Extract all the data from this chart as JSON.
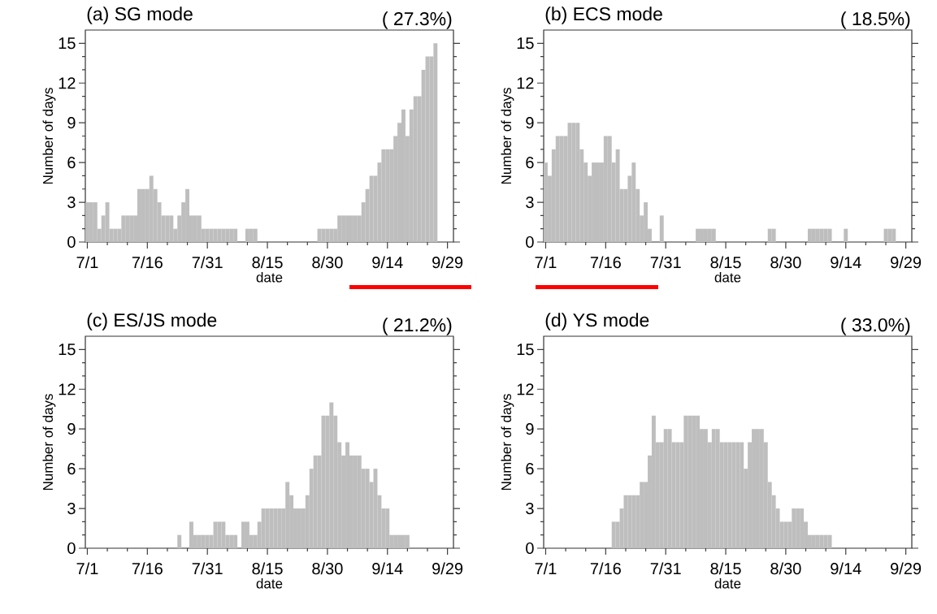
{
  "chart_data": [
    {
      "type": "bar",
      "title": "(a) SG mode",
      "subtitle": "( 27.3%)",
      "xlabel": "date",
      "ylabel": "Number of days",
      "color": "#bebebe",
      "ylim": [
        0,
        16
      ],
      "yticks": [
        0,
        3,
        6,
        9,
        12,
        15
      ],
      "categories": [
        "7/1",
        null,
        null,
        null,
        null,
        null,
        null,
        null,
        null,
        null,
        null,
        null,
        null,
        null,
        null,
        "7/16",
        null,
        null,
        null,
        null,
        null,
        null,
        null,
        null,
        null,
        null,
        null,
        null,
        null,
        null,
        "7/31",
        null,
        null,
        null,
        null,
        null,
        null,
        null,
        null,
        null,
        null,
        null,
        null,
        null,
        null,
        "8/15",
        null,
        null,
        null,
        null,
        null,
        null,
        null,
        null,
        null,
        null,
        null,
        null,
        null,
        null,
        "8/30",
        null,
        null,
        null,
        null,
        null,
        null,
        null,
        null,
        null,
        null,
        null,
        null,
        null,
        null,
        "9/14",
        null,
        null,
        null,
        null,
        null,
        null,
        null,
        null,
        null,
        null,
        null,
        null,
        null,
        null,
        "9/29",
        null
      ],
      "values": [
        3,
        3,
        3,
        1,
        2,
        3,
        1,
        1,
        1,
        2,
        2,
        2,
        2,
        4,
        4,
        4,
        5,
        4,
        3,
        2,
        2,
        2,
        1,
        2,
        3,
        4,
        2,
        2,
        2,
        1,
        1,
        1,
        1,
        1,
        1,
        1,
        1,
        1,
        0,
        0,
        1,
        1,
        1,
        0,
        0,
        0,
        0,
        0,
        0,
        0,
        0,
        0,
        0,
        0,
        0,
        0,
        0,
        0,
        1,
        1,
        1,
        1,
        1,
        2,
        2,
        2,
        2,
        2,
        2,
        3,
        4,
        5,
        5,
        6,
        7,
        7,
        7,
        8,
        9,
        10,
        8,
        10,
        11,
        11,
        13,
        14,
        14,
        15,
        0,
        0,
        0,
        0
      ]
    },
    {
      "type": "bar",
      "title": "(b) ECS mode",
      "subtitle": "( 18.5%)",
      "xlabel": "date",
      "ylabel": "Number of days",
      "color": "#bebebe",
      "ylim": [
        0,
        16
      ],
      "yticks": [
        0,
        3,
        6,
        9,
        12,
        15
      ],
      "categories": [
        "7/1",
        null,
        null,
        null,
        null,
        null,
        null,
        null,
        null,
        null,
        null,
        null,
        null,
        null,
        null,
        "7/16",
        null,
        null,
        null,
        null,
        null,
        null,
        null,
        null,
        null,
        null,
        null,
        null,
        null,
        null,
        "7/31",
        null,
        null,
        null,
        null,
        null,
        null,
        null,
        null,
        null,
        null,
        null,
        null,
        null,
        null,
        "8/15",
        null,
        null,
        null,
        null,
        null,
        null,
        null,
        null,
        null,
        null,
        null,
        null,
        null,
        null,
        "8/30",
        null,
        null,
        null,
        null,
        null,
        null,
        null,
        null,
        null,
        null,
        null,
        null,
        null,
        null,
        "9/14",
        null,
        null,
        null,
        null,
        null,
        null,
        null,
        null,
        null,
        null,
        null,
        null,
        null,
        null,
        "9/29",
        null
      ],
      "values": [
        6,
        5,
        7,
        8,
        8,
        8,
        9,
        9,
        9,
        7,
        6,
        5,
        6,
        6,
        6,
        8,
        8,
        6,
        7,
        4,
        4,
        5,
        6,
        4,
        2,
        3,
        1,
        0,
        0,
        2,
        0,
        0,
        0,
        0,
        0,
        0,
        0,
        0,
        1,
        1,
        1,
        1,
        1,
        0,
        0,
        0,
        0,
        0,
        0,
        0,
        0,
        0,
        0,
        0,
        0,
        0,
        1,
        1,
        0,
        0,
        0,
        0,
        0,
        0,
        0,
        0,
        1,
        1,
        1,
        1,
        1,
        1,
        0,
        0,
        0,
        1,
        0,
        0,
        0,
        0,
        0,
        0,
        0,
        0,
        0,
        1,
        1,
        1,
        0,
        0,
        0,
        0
      ]
    },
    {
      "type": "bar",
      "title": "(c) ES/JS mode",
      "subtitle": "( 21.2%)",
      "xlabel": "date",
      "ylabel": "Number of days",
      "color": "#bebebe",
      "ylim": [
        0,
        16
      ],
      "yticks": [
        0,
        3,
        6,
        9,
        12,
        15
      ],
      "categories": [
        "7/1",
        null,
        null,
        null,
        null,
        null,
        null,
        null,
        null,
        null,
        null,
        null,
        null,
        null,
        null,
        "7/16",
        null,
        null,
        null,
        null,
        null,
        null,
        null,
        null,
        null,
        null,
        null,
        null,
        null,
        null,
        "7/31",
        null,
        null,
        null,
        null,
        null,
        null,
        null,
        null,
        null,
        null,
        null,
        null,
        null,
        null,
        "8/15",
        null,
        null,
        null,
        null,
        null,
        null,
        null,
        null,
        null,
        null,
        null,
        null,
        null,
        null,
        "8/30",
        null,
        null,
        null,
        null,
        null,
        null,
        null,
        null,
        null,
        null,
        null,
        null,
        null,
        null,
        "9/14",
        null,
        null,
        null,
        null,
        null,
        null,
        null,
        null,
        null,
        null,
        null,
        null,
        null,
        null,
        "9/29",
        null
      ],
      "values": [
        0,
        0,
        0,
        0,
        0,
        0,
        0,
        0,
        0,
        0,
        0,
        0,
        0,
        0,
        0,
        0,
        0,
        0,
        0,
        0,
        0,
        0,
        0,
        1,
        0,
        0,
        2,
        1,
        1,
        1,
        1,
        1,
        2,
        2,
        2,
        1,
        1,
        1,
        0,
        2,
        2,
        1,
        1,
        2,
        3,
        3,
        3,
        3,
        3,
        3,
        5,
        4,
        3,
        3,
        3,
        4,
        6,
        7,
        7,
        10,
        10,
        11,
        10,
        8,
        7,
        8,
        7,
        7,
        7,
        6,
        6,
        5,
        6,
        4,
        3,
        3,
        1,
        1,
        1,
        1,
        1,
        0,
        0,
        0,
        0,
        0,
        0,
        0,
        0,
        0,
        0,
        0
      ]
    },
    {
      "type": "bar",
      "title": "(d) YS mode",
      "subtitle": "( 33.0%)",
      "xlabel": "date",
      "ylabel": "Number of days",
      "color": "#bebebe",
      "ylim": [
        0,
        16
      ],
      "yticks": [
        0,
        3,
        6,
        9,
        12,
        15
      ],
      "categories": [
        "7/1",
        null,
        null,
        null,
        null,
        null,
        null,
        null,
        null,
        null,
        null,
        null,
        null,
        null,
        null,
        "7/16",
        null,
        null,
        null,
        null,
        null,
        null,
        null,
        null,
        null,
        null,
        null,
        null,
        null,
        null,
        "7/31",
        null,
        null,
        null,
        null,
        null,
        null,
        null,
        null,
        null,
        null,
        null,
        null,
        null,
        null,
        "8/15",
        null,
        null,
        null,
        null,
        null,
        null,
        null,
        null,
        null,
        null,
        null,
        null,
        null,
        null,
        "8/30",
        null,
        null,
        null,
        null,
        null,
        null,
        null,
        null,
        null,
        null,
        null,
        null,
        null,
        null,
        "9/14",
        null,
        null,
        null,
        null,
        null,
        null,
        null,
        null,
        null,
        null,
        null,
        null,
        null,
        null,
        "9/29",
        null
      ],
      "values": [
        0,
        0,
        0,
        0,
        0,
        0,
        0,
        0,
        0,
        0,
        0,
        0,
        0,
        0,
        0,
        0,
        0,
        2,
        2,
        3,
        4,
        4,
        4,
        4,
        5,
        5,
        7,
        10,
        8,
        8,
        9,
        9,
        8,
        8,
        8,
        10,
        10,
        10,
        10,
        9,
        9,
        8,
        9,
        9,
        8,
        8,
        8,
        8,
        8,
        8,
        6,
        8,
        9,
        9,
        9,
        8,
        5,
        4,
        3,
        2,
        2,
        2,
        3,
        3,
        3,
        2,
        1,
        1,
        1,
        1,
        1,
        1,
        0,
        0,
        0,
        0,
        0,
        0,
        0,
        0,
        0,
        0,
        0,
        0,
        0,
        0,
        0,
        0,
        0,
        0,
        0,
        0
      ]
    }
  ]
}
